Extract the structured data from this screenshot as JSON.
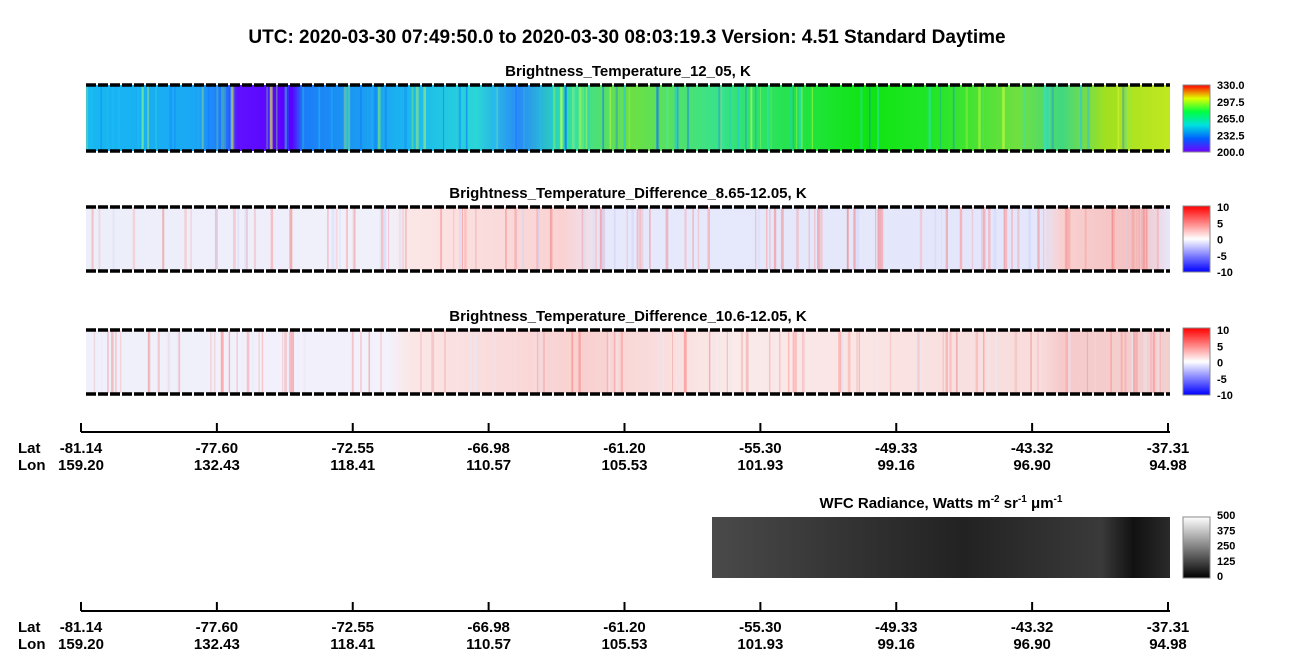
{
  "title": "UTC:  2020-03-30   07:49:50.0  to  2020-03-30   08:03:19.3    Version: 4.51  Standard Daytime",
  "panels": [
    {
      "title": "Brightness_Temperature_12_05, K",
      "colorbar_ticks": [
        "330.0",
        "297.5",
        "265.0",
        "232.5",
        "200.0"
      ]
    },
    {
      "title": "Brightness_Temperature_Difference_8.65-12.05, K",
      "colorbar_ticks": [
        "10",
        "5",
        "0",
        "-5",
        "-10"
      ]
    },
    {
      "title": "Brightness_Temperature_Difference_10.6-12.05, K",
      "colorbar_ticks": [
        "10",
        "5",
        "0",
        "-5",
        "-10"
      ]
    }
  ],
  "radiance": {
    "title_parts": [
      "WFC Radiance, Watts m",
      "-2",
      " sr",
      "-1",
      " μm",
      "-1"
    ],
    "colorbar_ticks": [
      "500",
      "375",
      "250",
      "125",
      "0"
    ]
  },
  "axes": [
    {
      "lat_label": "Lat",
      "lon_label": "Lon",
      "lat": [
        "-81.14",
        "-77.60",
        "-72.55",
        "-66.98",
        "-61.20",
        "-55.30",
        "-49.33",
        "-43.32",
        "-37.31"
      ],
      "lon": [
        "159.20",
        "132.43",
        "118.41",
        "110.57",
        "105.53",
        "101.93",
        "99.16",
        "96.90",
        "94.98"
      ]
    },
    {
      "lat_label": "Lat",
      "lon_label": "Lon",
      "lat": [
        "-81.14",
        "-77.60",
        "-72.55",
        "-66.98",
        "-61.20",
        "-55.30",
        "-49.33",
        "-43.32",
        "-37.31"
      ],
      "lon": [
        "159.20",
        "132.43",
        "118.41",
        "110.57",
        "105.53",
        "101.93",
        "99.16",
        "96.90",
        "94.98"
      ]
    }
  ]
}
